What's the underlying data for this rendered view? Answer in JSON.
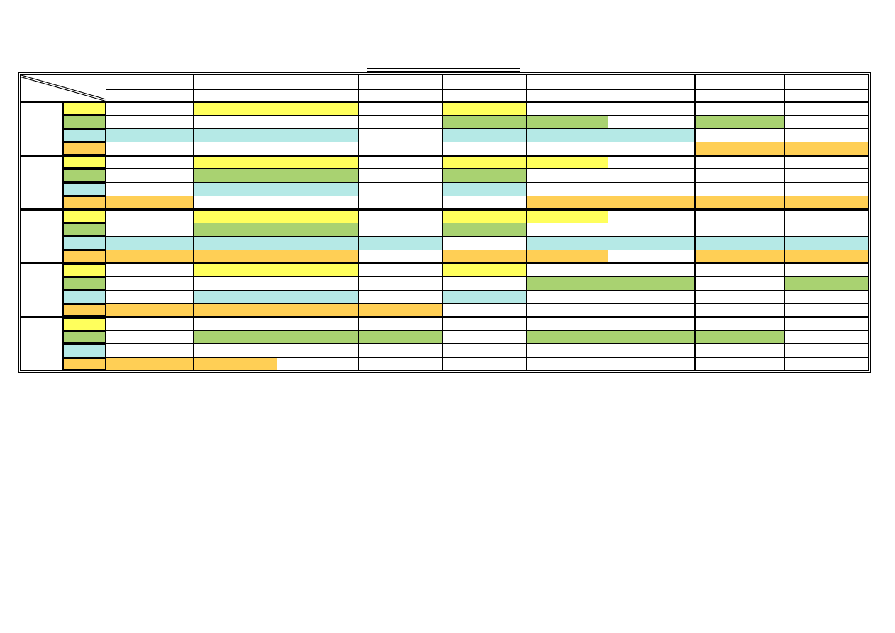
{
  "page": {
    "background": "#FFFFFF"
  },
  "title": {
    "text": "",
    "style": "double-underline-only-no-visible-text"
  },
  "table": {
    "corner": {
      "diagonal": "double-line-top-left-to-bottom-right"
    },
    "column_headers_row1": [
      "",
      "",
      "",
      "",
      "",
      "",
      "",
      "",
      ""
    ],
    "column_headers_row2": [
      "",
      "",
      "",
      "",
      "",
      "",
      "",
      "",
      ""
    ],
    "row_groups": [
      {
        "label": "",
        "row_labels": [
          "",
          "",
          "",
          ""
        ]
      },
      {
        "label": "",
        "row_labels": [
          "",
          "",
          "",
          ""
        ]
      },
      {
        "label": "",
        "row_labels": [
          "",
          "",
          "",
          ""
        ]
      },
      {
        "label": "",
        "row_labels": [
          "",
          "",
          "",
          ""
        ]
      },
      {
        "label": "",
        "row_labels": [
          "",
          "",
          "",
          ""
        ]
      }
    ],
    "legend_colors": {
      "yellow": "#FFFF5C",
      "green": "#A9D271",
      "cyan": "#B5E9E6",
      "orange": "#FFCF55"
    },
    "grid_color": "#000000"
  },
  "chart_data": {
    "type": "table",
    "subtype": "gantt-style-schedule-grid",
    "title": "",
    "columns": 9,
    "row_colors_per_group": [
      "yellow",
      "green",
      "cyan",
      "orange"
    ],
    "groups": [
      {
        "bars": {
          "yellow": [
            [
              2,
              3
            ],
            [
              5,
              5
            ]
          ],
          "green": [
            [
              5,
              6
            ],
            [
              8,
              8
            ]
          ],
          "cyan": [
            [
              1,
              3
            ],
            [
              5,
              7
            ]
          ],
          "orange": [
            [
              8,
              9
            ]
          ]
        }
      },
      {
        "bars": {
          "yellow": [
            [
              2,
              3
            ],
            [
              5,
              6
            ]
          ],
          "green": [
            [
              2,
              3
            ],
            [
              5,
              5
            ]
          ],
          "cyan": [
            [
              2,
              3
            ],
            [
              5,
              5
            ]
          ],
          "orange": [
            [
              1,
              1
            ],
            [
              6,
              9
            ]
          ]
        }
      },
      {
        "bars": {
          "yellow": [
            [
              2,
              3
            ],
            [
              5,
              6
            ]
          ],
          "green": [
            [
              2,
              3
            ],
            [
              5,
              5
            ]
          ],
          "cyan": [
            [
              1,
              4
            ],
            [
              6,
              9
            ]
          ],
          "orange": [
            [
              1,
              3
            ],
            [
              5,
              6
            ],
            [
              8,
              9
            ]
          ]
        }
      },
      {
        "bars": {
          "yellow": [
            [
              2,
              3
            ],
            [
              5,
              5
            ]
          ],
          "green": [
            [
              6,
              7
            ],
            [
              9,
              9
            ]
          ],
          "cyan": [
            [
              2,
              3
            ],
            [
              5,
              5
            ]
          ],
          "orange": [
            [
              1,
              4
            ]
          ]
        }
      },
      {
        "bars": {
          "yellow": [],
          "green": [
            [
              2,
              4
            ],
            [
              6,
              8
            ]
          ],
          "cyan": [],
          "orange": [
            [
              1,
              2
            ]
          ]
        }
      }
    ],
    "thick_column_separators_before_columns": [
      5,
      6,
      8
    ],
    "thick_row_underline": [
      {
        "group": 2,
        "row": "yellow"
      },
      {
        "group": 5,
        "row": "green"
      }
    ],
    "notes": "All header cells, group label cells and color-key label cells are blank (no visible text) in the source image; bars are cell fills and grid lines remain visible through them."
  }
}
